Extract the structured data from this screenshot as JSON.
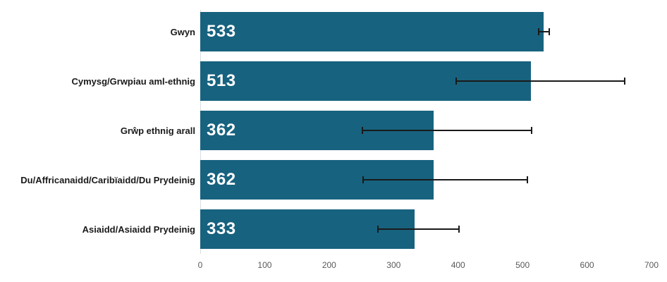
{
  "chart_data": {
    "type": "bar",
    "orientation": "horizontal",
    "title": "",
    "xlabel": "",
    "ylabel": "",
    "grid": false,
    "categories": [
      "Gwyn",
      "Cymysg/Grwpiau aml-ethnig",
      "Grŵp ethnig arall",
      "Du/Affricanaidd/Caribïaidd/Du Prydeinig",
      "Asiaidd/Asiaidd Prydeinig"
    ],
    "values": [
      533,
      513,
      362,
      362,
      333
    ],
    "error_bars": [
      {
        "low": 524,
        "high": 543
      },
      {
        "low": 396,
        "high": 660
      },
      {
        "low": 250,
        "high": 515
      },
      {
        "low": 252,
        "high": 509
      },
      {
        "low": 275,
        "high": 402
      }
    ],
    "xlim": [
      0,
      700
    ],
    "xticks": [
      0,
      100,
      200,
      300,
      400,
      500,
      600,
      700
    ],
    "colors": {
      "bar": "#17627f",
      "value_label": "#ffffff",
      "category_label": "#1a1a1a",
      "axis_tick_label": "#595959",
      "axis_line": "#d6dde3",
      "error_bar": "#1a1a1a",
      "background": "#ffffff"
    }
  }
}
